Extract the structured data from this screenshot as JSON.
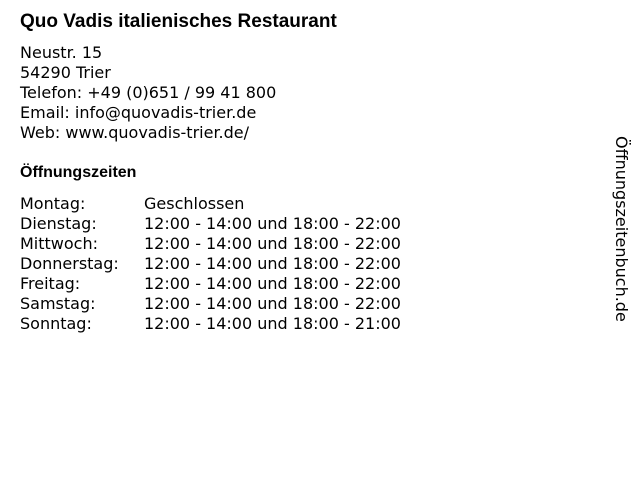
{
  "title": "Quo Vadis italienisches Restaurant",
  "address": [
    "Neustr. 15",
    "54290 Trier",
    "Telefon: +49 (0)651 / 99 41 800",
    "Email: info@quovadis-trier.de",
    "Web: www.quovadis-trier.de/"
  ],
  "hours_heading": "Öffnungszeiten",
  "hours": [
    {
      "day": "Montag:",
      "time": "Geschlossen"
    },
    {
      "day": "Dienstag:",
      "time": "12:00 - 14:00 und 18:00 - 22:00"
    },
    {
      "day": "Mittwoch:",
      "time": "12:00 - 14:00 und 18:00 - 22:00"
    },
    {
      "day": "Donnerstag:",
      "time": "12:00 - 14:00 und 18:00 - 22:00"
    },
    {
      "day": "Freitag:",
      "time": "12:00 - 14:00 und 18:00 - 22:00"
    },
    {
      "day": "Samstag:",
      "time": "12:00 - 14:00 und 18:00 - 22:00"
    },
    {
      "day": "Sonntag:",
      "time": "12:00 - 14:00 und 18:00 - 21:00"
    }
  ],
  "watermark": "Öffnungszeitenbuch.de"
}
